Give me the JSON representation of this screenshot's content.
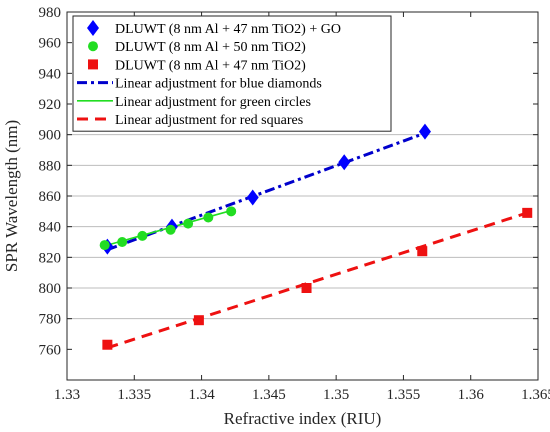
{
  "chart_data": {
    "type": "scatter",
    "xlabel": "Refractive index (RIU)",
    "ylabel": "SPR Wavelength (nm)",
    "xlim": [
      1.33,
      1.365
    ],
    "ylim": [
      740,
      980
    ],
    "x_ticks": [
      1.33,
      1.335,
      1.34,
      1.345,
      1.35,
      1.355,
      1.36,
      1.365
    ],
    "x_tick_labels": [
      "1.33",
      "1.335",
      "1.34",
      "1.345",
      "1.35",
      "1.355",
      "1.36",
      "1.365"
    ],
    "y_ticks": [
      760,
      780,
      800,
      820,
      840,
      860,
      880,
      900,
      920,
      940,
      960,
      980
    ],
    "y_tick_labels": [
      "760",
      "780",
      "800",
      "820",
      "840",
      "860",
      "880",
      "900",
      "920",
      "940",
      "960",
      "980"
    ],
    "horizontal_gridlines": [
      780,
      800,
      820,
      840,
      860,
      880,
      900
    ],
    "legend_position": "top-left",
    "series": [
      {
        "name": "DLUWT (8 nm Al + 47 nm TiO2) + GO",
        "marker": "diamond",
        "color": "#0000ff",
        "x": [
          1.333,
          1.3378,
          1.3438,
          1.3506,
          1.3566
        ],
        "y": [
          827,
          840,
          859,
          882,
          902
        ]
      },
      {
        "name": "DLUWT (8 nm Al + 50 nm TiO2)",
        "marker": "circle",
        "color": "#22dd22",
        "x": [
          1.3328,
          1.3341,
          1.3356,
          1.3377,
          1.339,
          1.3405,
          1.3422
        ],
        "y": [
          828,
          830,
          834,
          838,
          842,
          846,
          850
        ]
      },
      {
        "name": "DLUWT (8 nm Al + 47 nm TiO2)",
        "marker": "square",
        "color": "#ee1111",
        "x": [
          1.333,
          1.3398,
          1.3478,
          1.3564,
          1.3642
        ],
        "y": [
          763,
          779,
          800,
          824,
          849
        ]
      }
    ],
    "fit_lines": [
      {
        "name": "Linear adjustment for blue diamonds",
        "style": "dash-dot",
        "color": "#0000cc",
        "x": [
          1.333,
          1.3566
        ],
        "y": [
          825,
          901
        ]
      },
      {
        "name": "Linear adjustment for green circles",
        "style": "solid",
        "color": "#22dd22",
        "x": [
          1.3328,
          1.3422
        ],
        "y": [
          827.5,
          850.5
        ]
      },
      {
        "name": "Linear adjustment for red squares",
        "style": "dashed",
        "color": "#ee1111",
        "x": [
          1.333,
          1.3642
        ],
        "y": [
          761,
          849
        ]
      }
    ]
  }
}
